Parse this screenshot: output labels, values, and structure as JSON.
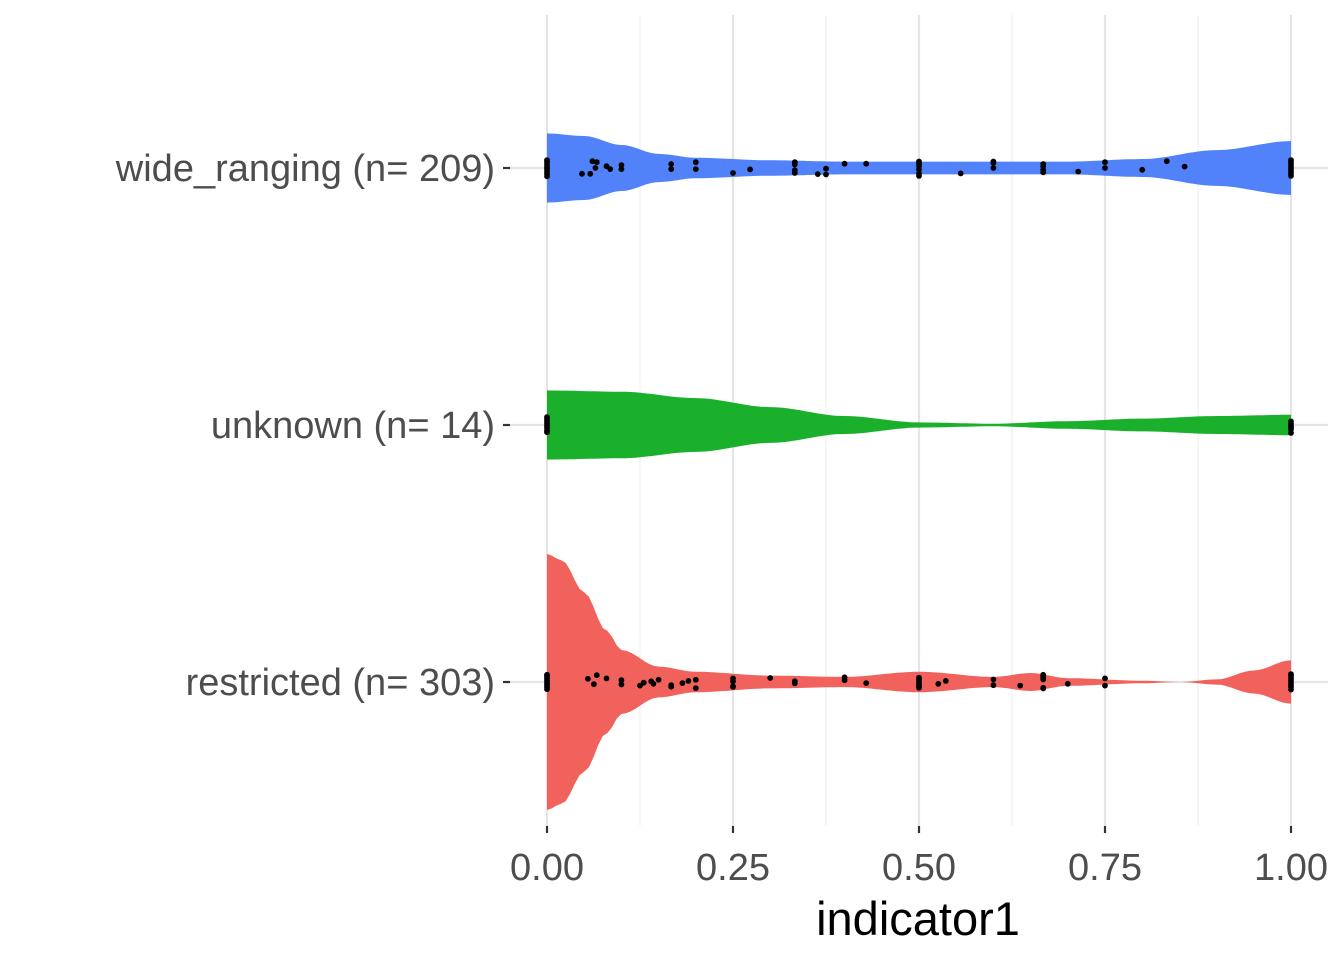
{
  "chart_data": {
    "type": "violin",
    "orientation": "horizontal",
    "xlabel": "indicator1",
    "ylabel": "",
    "title": "",
    "xlim": [
      0,
      1
    ],
    "x_ticks": [
      0,
      0.25,
      0.5,
      0.75,
      1
    ],
    "x_tick_labels": [
      "0.00",
      "0.25",
      "0.50",
      "0.75",
      "1.00"
    ],
    "grid": true,
    "legend": "none",
    "categories": [
      {
        "label": "wide_ranging (n= 209)",
        "color": "#5182FA",
        "density_x": [
          0,
          0.05,
          0.1,
          0.15,
          0.2,
          0.3,
          0.4,
          0.5,
          0.6,
          0.7,
          0.8,
          0.9,
          1.0
        ],
        "density_halfwidth": [
          0.27,
          0.25,
          0.18,
          0.11,
          0.08,
          0.06,
          0.05,
          0.05,
          0.05,
          0.05,
          0.07,
          0.14,
          0.21
        ],
        "points": [
          [
            0,
            0.02
          ],
          [
            0,
            0.09
          ],
          [
            0,
            0.16
          ],
          [
            0,
            0.23
          ],
          [
            0,
            -0.02
          ],
          [
            0,
            -0.09
          ],
          [
            0,
            -0.16
          ],
          [
            0,
            -0.22
          ],
          [
            0.047,
            0.16
          ],
          [
            0.058,
            0.16
          ],
          [
            0.061,
            -0.19
          ],
          [
            0.067,
            -0.16
          ],
          [
            0.065,
            0.0
          ],
          [
            0.08,
            -0.05
          ],
          [
            0.085,
            0.03
          ],
          [
            0.1,
            0.03
          ],
          [
            0.1,
            -0.08
          ],
          [
            0.167,
            0.03
          ],
          [
            0.167,
            -0.11
          ],
          [
            0.2,
            0.03
          ],
          [
            0.2,
            -0.16
          ],
          [
            0.25,
            0.14
          ],
          [
            0.273,
            0.04
          ],
          [
            0.333,
            0.14
          ],
          [
            0.333,
            0.06
          ],
          [
            0.333,
            -0.1
          ],
          [
            0.333,
            -0.16
          ],
          [
            0.364,
            0.17
          ],
          [
            0.375,
            0.18
          ],
          [
            0.375,
            0.02
          ],
          [
            0.4,
            -0.12
          ],
          [
            0.429,
            -0.12
          ],
          [
            0.5,
            0.22
          ],
          [
            0.5,
            0.15
          ],
          [
            0.5,
            0.04
          ],
          [
            0.5,
            -0.05
          ],
          [
            0.5,
            -0.12
          ],
          [
            0.5,
            -0.18
          ],
          [
            0.556,
            0.15
          ],
          [
            0.6,
            0.0
          ],
          [
            0.6,
            -0.14
          ],
          [
            0.6,
            -0.18
          ],
          [
            0.667,
            0.12
          ],
          [
            0.667,
            0.05
          ],
          [
            0.667,
            -0.05
          ],
          [
            0.667,
            -0.11
          ],
          [
            0.714,
            0.1
          ],
          [
            0.75,
            0.0
          ],
          [
            0.75,
            -0.16
          ],
          [
            0.8,
            0.05
          ],
          [
            0.833,
            -0.19
          ],
          [
            0.857,
            -0.04
          ],
          [
            1,
            0.22
          ],
          [
            1,
            0.15
          ],
          [
            1,
            0.09
          ],
          [
            1,
            0.03
          ],
          [
            1,
            -0.03
          ],
          [
            1,
            -0.1
          ],
          [
            1,
            -0.16
          ],
          [
            1,
            -0.22
          ]
        ]
      },
      {
        "label": "unknown (n= 14)",
        "color": "#1BB02C",
        "density_x": [
          0,
          0.1,
          0.2,
          0.3,
          0.4,
          0.5,
          0.6,
          0.7,
          0.8,
          0.9,
          1.0
        ],
        "density_halfwidth": [
          0.27,
          0.26,
          0.21,
          0.14,
          0.07,
          0.02,
          0.01,
          0.03,
          0.05,
          0.07,
          0.08
        ],
        "points": [
          [
            0,
            0.2
          ],
          [
            0,
            0.15
          ],
          [
            0,
            0.08
          ],
          [
            0,
            0.02
          ],
          [
            0,
            -0.04
          ],
          [
            0,
            -0.1
          ],
          [
            0,
            -0.16
          ],
          [
            0,
            -0.22
          ],
          [
            1,
            0.22
          ],
          [
            1,
            0.12
          ],
          [
            1,
            0.03
          ],
          [
            1,
            -0.03
          ],
          [
            1,
            -0.1
          ],
          [
            1,
            0.07
          ]
        ]
      },
      {
        "label": "restricted (n= 303)",
        "color": "#F2625C",
        "density_x": [
          0,
          0.02,
          0.05,
          0.08,
          0.1,
          0.15,
          0.2,
          0.3,
          0.4,
          0.5,
          0.6,
          0.65,
          0.7,
          0.8,
          0.85,
          0.9,
          0.95,
          1.0
        ],
        "density_halfwidth": [
          1.0,
          0.95,
          0.7,
          0.4,
          0.25,
          0.12,
          0.08,
          0.05,
          0.04,
          0.08,
          0.04,
          0.07,
          0.03,
          0.01,
          0.0,
          0.02,
          0.09,
          0.17
        ],
        "points": [
          [
            0,
            0.2
          ],
          [
            0,
            0.14
          ],
          [
            0,
            0.08
          ],
          [
            0,
            0.03
          ],
          [
            0,
            -0.03
          ],
          [
            0,
            -0.09
          ],
          [
            0,
            -0.15
          ],
          [
            0,
            -0.2
          ],
          [
            0.063,
            0.06
          ],
          [
            0.055,
            -0.09
          ],
          [
            0.067,
            -0.19
          ],
          [
            0.08,
            -0.1
          ],
          [
            0.1,
            0.07
          ],
          [
            0.1,
            -0.05
          ],
          [
            0.125,
            0.1
          ],
          [
            0.13,
            0.02
          ],
          [
            0.14,
            -0.02
          ],
          [
            0.143,
            0.05
          ],
          [
            0.15,
            -0.06
          ],
          [
            0.167,
            0.13
          ],
          [
            0.167,
            0.09
          ],
          [
            0.182,
            0.03
          ],
          [
            0.19,
            -0.03
          ],
          [
            0.2,
            0.17
          ],
          [
            0.2,
            -0.06
          ],
          [
            0.25,
            0.14
          ],
          [
            0.25,
            0.12
          ],
          [
            0.25,
            -0.02
          ],
          [
            0.25,
            -0.1
          ],
          [
            0.3,
            -0.11
          ],
          [
            0.333,
            0.04
          ],
          [
            0.333,
            -0.02
          ],
          [
            0.4,
            -0.05
          ],
          [
            0.4,
            -0.13
          ],
          [
            0.429,
            0.03
          ],
          [
            0.5,
            0.16
          ],
          [
            0.5,
            0.12
          ],
          [
            0.5,
            0.06
          ],
          [
            0.5,
            0.0
          ],
          [
            0.5,
            -0.06
          ],
          [
            0.5,
            -0.12
          ],
          [
            0.526,
            0.05
          ],
          [
            0.536,
            -0.03
          ],
          [
            0.6,
            0.09
          ],
          [
            0.6,
            -0.07
          ],
          [
            0.636,
            0.1
          ],
          [
            0.667,
            0.18
          ],
          [
            0.667,
            0.16
          ],
          [
            0.667,
            -0.07
          ],
          [
            0.667,
            -0.12
          ],
          [
            0.667,
            -0.17
          ],
          [
            0.667,
            -0.2
          ],
          [
            0.7,
            0.05
          ],
          [
            0.75,
            0.1
          ],
          [
            0.75,
            -0.1
          ],
          [
            1,
            0.21
          ],
          [
            1,
            0.14
          ],
          [
            1,
            0.08
          ],
          [
            1,
            0.02
          ],
          [
            1,
            -0.05
          ],
          [
            1,
            -0.11
          ],
          [
            1,
            -0.17
          ],
          [
            1,
            -0.22
          ]
        ]
      }
    ]
  }
}
